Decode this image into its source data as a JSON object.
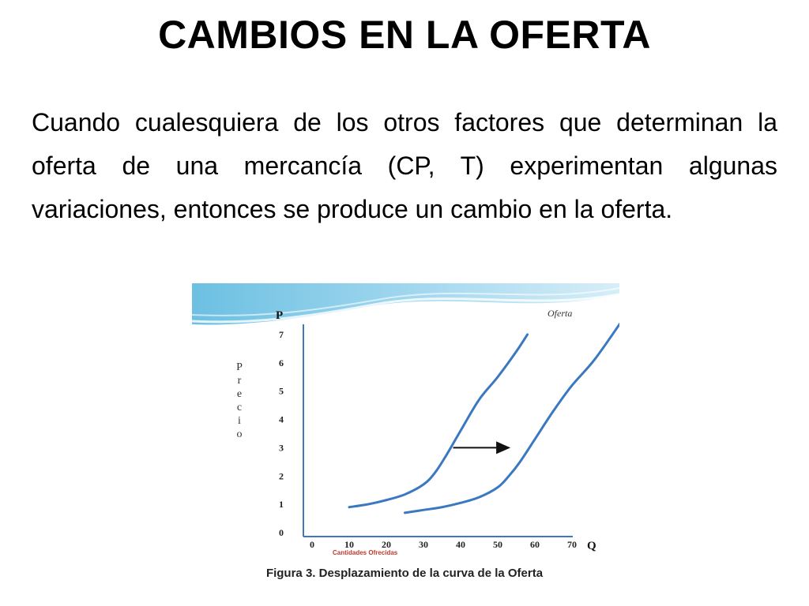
{
  "slide": {
    "title": "CAMBIOS EN LA OFERTA",
    "body": "Cuando cualesquiera de los otros factores que determinan la oferta de una mercancía (CP, T) experimentan algunas variaciones, entonces se produce un cambio en la oferta."
  },
  "figure": {
    "caption": "Figura 3. Desplazamiento de la curva de la Oferta"
  },
  "chart_data": {
    "type": "line",
    "xlabel": "Cantidades Ofrecidas",
    "ylabel": "Precio",
    "x_axis_letter": "Q",
    "y_axis_letter": "P",
    "xlim": [
      0,
      80
    ],
    "ylim": [
      0,
      7.5
    ],
    "x_ticks": [
      0,
      10,
      20,
      30,
      40,
      50,
      60,
      70
    ],
    "y_ticks": [
      0,
      1,
      2,
      3,
      4,
      5,
      6,
      7
    ],
    "grid": false,
    "series": [
      {
        "name": "",
        "color": "#3a78c2",
        "x": [
          10,
          15,
          20,
          25,
          30,
          33,
          36,
          40,
          45,
          50,
          55,
          58
        ],
        "y": [
          0.9,
          1.0,
          1.15,
          1.35,
          1.7,
          2.1,
          2.7,
          3.6,
          4.7,
          5.5,
          6.4,
          7.0
        ]
      },
      {
        "name": "Oferta",
        "color": "#3a78c2",
        "x": [
          25,
          30,
          35,
          40,
          45,
          50,
          53,
          56,
          60,
          65,
          70,
          76,
          83
        ],
        "y": [
          0.7,
          0.8,
          0.9,
          1.05,
          1.25,
          1.6,
          2.0,
          2.5,
          3.3,
          4.3,
          5.2,
          6.1,
          7.4
        ]
      }
    ],
    "annotations": [
      {
        "type": "arrow",
        "from": [
          38,
          3.0
        ],
        "to": [
          53,
          3.0
        ]
      }
    ]
  },
  "colors": {
    "curve": "#3a78c2",
    "header_wave": "#5ab4d9",
    "xlabel": "#c0392b"
  }
}
